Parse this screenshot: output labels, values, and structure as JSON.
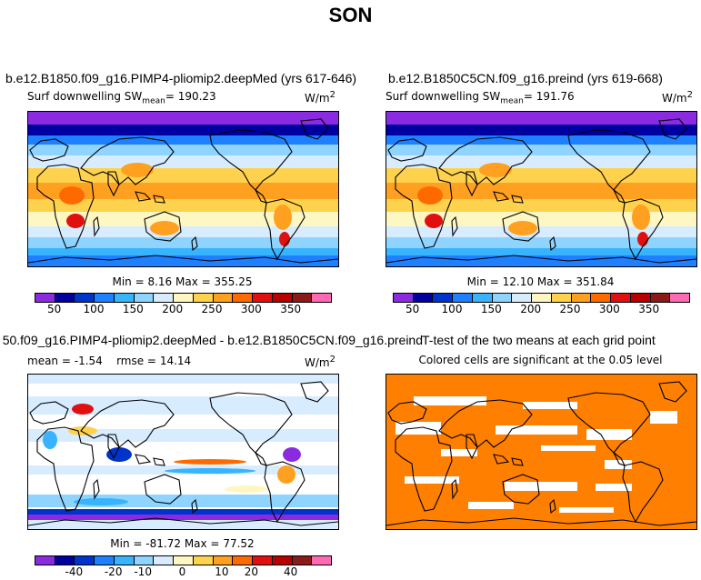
{
  "figure": {
    "title": "SON",
    "palette": [
      "#8a2be2",
      "#0000a0",
      "#0033cc",
      "#1e7fff",
      "#38b4ff",
      "#8fd3ff",
      "#d8ecff",
      "#fff7c2",
      "#ffd24d",
      "#ffa020",
      "#ff6a00",
      "#e01010",
      "#b80000",
      "#8b1a1a",
      "#ff69b4"
    ]
  },
  "chart_data": [
    {
      "type": "heatmap",
      "panel": "top-left",
      "title": "b.e12.B1850.f09_g16.PIMP4-pliomip2.deepMed (yrs 617-646)",
      "variable": "Surf downwelling SW",
      "stat_label": "mean",
      "stat_value": "190.23",
      "units": "W/m",
      "units_exp": "2",
      "min_label": "Min =",
      "min": "8.16",
      "max_label": "Max =",
      "max": "355.25",
      "colorbar_ticks": [
        {
          "label": "50",
          "boundary": 1
        },
        {
          "label": "100",
          "boundary": 3
        },
        {
          "label": "150",
          "boundary": 5
        },
        {
          "label": "200",
          "boundary": 7
        },
        {
          "label": "250",
          "boundary": 9
        },
        {
          "label": "300",
          "boundary": 11
        },
        {
          "label": "350",
          "boundary": 13
        }
      ]
    },
    {
      "type": "heatmap",
      "panel": "top-right",
      "title": "b.e12.B1850C5CN.f09_g16.preind (yrs 619-668)",
      "variable": "Surf downwelling SW",
      "stat_label": "mean",
      "stat_value": "191.76",
      "units": "W/m",
      "units_exp": "2",
      "min_label": "Min =",
      "min": "12.10",
      "max_label": "Max =",
      "max": "351.84",
      "colorbar_ticks": [
        {
          "label": "50",
          "boundary": 1
        },
        {
          "label": "100",
          "boundary": 3
        },
        {
          "label": "150",
          "boundary": 5
        },
        {
          "label": "200",
          "boundary": 7
        },
        {
          "label": "250",
          "boundary": 9
        },
        {
          "label": "300",
          "boundary": 11
        },
        {
          "label": "350",
          "boundary": 13
        }
      ]
    },
    {
      "type": "heatmap",
      "panel": "bottom-left",
      "title": "50.f09_g16.PIMP4-pliomip2.deepMed - b.e12.B1850C5CN.f09_g16.preind",
      "mean_label": "mean =",
      "mean": "-1.54",
      "rmse_label": "rmse =",
      "rmse": "14.14",
      "units": "W/m",
      "units_exp": "2",
      "min_label": "Min =",
      "min": "-81.72",
      "max_label": "Max =",
      "max": "77.52",
      "colorbar_ticks": [
        {
          "label": "-40",
          "boundary": 2
        },
        {
          "label": "-20",
          "boundary": 4
        },
        {
          "label": "-10",
          "boundary": 5.5
        },
        {
          "label": "0",
          "boundary": 7.5
        },
        {
          "label": "10",
          "boundary": 9.5
        },
        {
          "label": "20",
          "boundary": 11
        },
        {
          "label": "40",
          "boundary": 13
        }
      ]
    },
    {
      "type": "heatmap",
      "panel": "bottom-right",
      "title": "T-test of the two means at each grid point",
      "subtitle": "Colored cells are significant at the 0.05 level",
      "significant_color": "#ff7f00"
    }
  ]
}
